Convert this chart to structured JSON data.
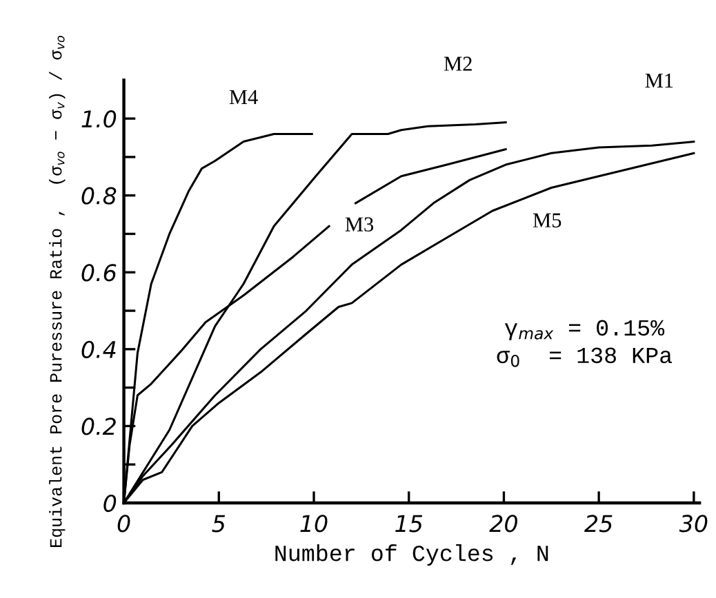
{
  "chart_data": {
    "type": "line",
    "xlabel": "Number of Cycles , N",
    "ylabel": "Equivalent Pore Puressure Ratio ,  (σ$_{vo}$ − σ$_{v}$) / σ$_{vo}$",
    "xlim": [
      0,
      30.3
    ],
    "ylim": [
      0,
      1.1
    ],
    "xticks": [
      0,
      5,
      10,
      15,
      20,
      25,
      30
    ],
    "yticks": [
      0,
      {
        "value": 0.1,
        "label": null
      },
      0.2,
      {
        "value": 0.3,
        "label": null
      },
      0.4,
      {
        "value": 0.5,
        "label": null
      },
      0.6,
      {
        "value": 0.7,
        "label": null
      },
      0.8,
      {
        "value": 0.9,
        "label": null
      },
      {
        "value": 1.0,
        "label": "1.0"
      }
    ],
    "grid": false,
    "legend": false,
    "marker": "none",
    "line_style": "solid",
    "annotations": [
      "γ$_{max}$ = 0.15%",
      "σ$_{0}$  = 138 KPa"
    ],
    "series": [
      {
        "name": "M1",
        "color": "#000000",
        "x": [
          0,
          1,
          2.5,
          4.8,
          7.2,
          9.6,
          12.0,
          14.6,
          16.3,
          18.2,
          20.1,
          22.5,
          25.0,
          27.8,
          30
        ],
        "values": [
          0,
          0.07,
          0.15,
          0.28,
          0.4,
          0.5,
          0.62,
          0.71,
          0.78,
          0.84,
          0.88,
          0.91,
          0.925,
          0.93,
          0.94
        ]
      },
      {
        "name": "M2",
        "color": "#000000",
        "x": [
          0,
          2.4,
          4.8,
          6.3,
          7.9,
          10.1,
          12.0,
          13.9,
          14.6,
          16.0,
          18.5,
          20.1
        ],
        "values": [
          0,
          0.19,
          0.46,
          0.57,
          0.72,
          0.85,
          0.96,
          0.96,
          0.97,
          0.98,
          0.985,
          0.99
        ]
      },
      {
        "name": "M3",
        "color": "#000000",
        "x": [
          0,
          0.3,
          0.72,
          1.44,
          3.1,
          4.3,
          6.3,
          8.9,
          10.8,
          11.5,
          12.2,
          14.6,
          17.0,
          20.1
        ],
        "values": [
          0,
          0.15,
          0.28,
          0.31,
          0.4,
          0.47,
          0.54,
          0.64,
          0.72,
          null,
          0.78,
          0.85,
          0.88,
          0.92
        ]
      },
      {
        "name": "M4",
        "color": "#000000",
        "x": [
          0,
          0.72,
          1.44,
          2.4,
          3.4,
          4.1,
          4.8,
          6.3,
          7.9,
          9.9
        ],
        "values": [
          0,
          0.39,
          0.57,
          0.7,
          0.81,
          0.87,
          0.89,
          0.94,
          0.96,
          0.96
        ]
      },
      {
        "name": "M5",
        "color": "#000000",
        "x": [
          0,
          1,
          2,
          3.6,
          5.0,
          7.2,
          9.6,
          11.3,
          12.0,
          14.6,
          17.0,
          19.4,
          22.5,
          25.0,
          30
        ],
        "values": [
          0,
          0.06,
          0.08,
          0.2,
          0.26,
          0.34,
          0.44,
          0.51,
          0.52,
          0.62,
          0.69,
          0.76,
          0.82,
          0.85,
          0.91
        ]
      }
    ]
  }
}
